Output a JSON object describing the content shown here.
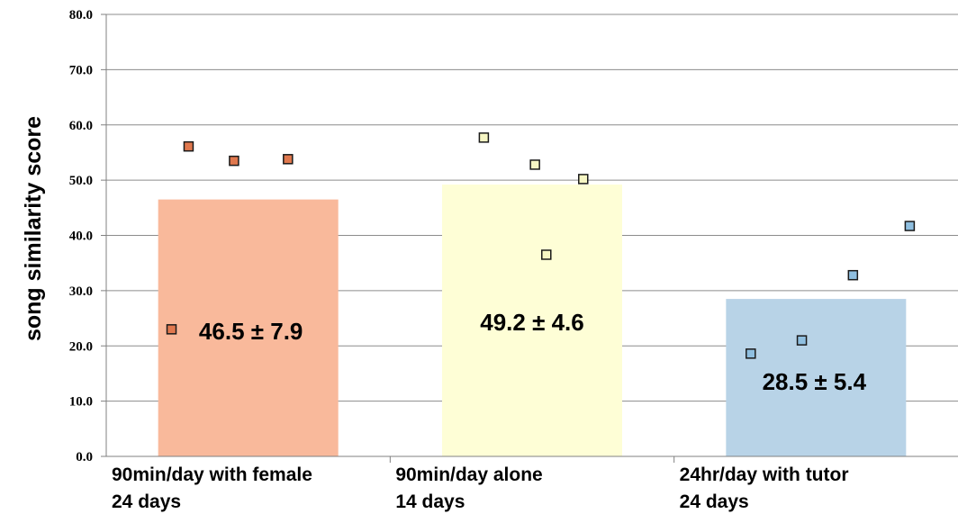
{
  "chart_data": {
    "type": "bar",
    "ylabel": "song similarity score",
    "ylim": [
      0,
      80
    ],
    "yticks": [
      "0.0",
      "10.0",
      "20.0",
      "30.0",
      "40.0",
      "50.0",
      "60.0",
      "70.0",
      "80.0"
    ],
    "grid": "horizontal",
    "categories": [
      {
        "line1": "90min/day with female",
        "line2": "24 days"
      },
      {
        "line1": "90min/day alone",
        "line2": "14 days"
      },
      {
        "line1": "24hr/day with tutor",
        "line2": "24 days"
      }
    ],
    "values": [
      46.5,
      49.2,
      28.5
    ],
    "data_labels": [
      "46.5 ± 7.9",
      "49.2 ± 4.6",
      "28.5 ± 5.4"
    ],
    "bar_colors": [
      "#f9b99b",
      "#fefed6",
      "#b8d3e7"
    ],
    "individual_points": [
      {
        "color": "#e0784e",
        "values": [
          56.1,
          53.5,
          53.8,
          23.0
        ]
      },
      {
        "color": "#f6f6c4",
        "values": [
          57.7,
          52.8,
          50.2,
          36.5
        ]
      },
      {
        "color": "#8fbfe0",
        "values": [
          18.6,
          21.0,
          32.8,
          41.7
        ]
      }
    ]
  }
}
